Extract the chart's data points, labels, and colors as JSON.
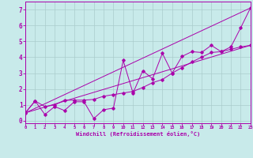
{
  "xlabel": "Windchill (Refroidissement éolien,°C)",
  "ylabel": "",
  "background_color": "#c8eaea",
  "line_color": "#aa00aa",
  "grid_color": "#aacccc",
  "xlim": [
    0,
    23
  ],
  "ylim": [
    -0.15,
    7.5
  ],
  "xticks": [
    0,
    1,
    2,
    3,
    4,
    5,
    6,
    7,
    8,
    9,
    10,
    11,
    12,
    13,
    14,
    15,
    16,
    17,
    18,
    19,
    20,
    21,
    22,
    23
  ],
  "yticks": [
    0,
    1,
    2,
    3,
    4,
    5,
    6,
    7
  ],
  "series1_x": [
    0,
    1,
    2,
    3,
    4,
    5,
    6,
    7,
    8,
    9,
    10,
    11,
    12,
    13,
    14,
    15,
    16,
    17,
    18,
    19,
    20,
    21,
    22,
    23
  ],
  "series1_y": [
    0.5,
    1.25,
    0.4,
    0.9,
    0.65,
    1.2,
    1.2,
    0.15,
    0.7,
    0.8,
    3.8,
    1.75,
    3.15,
    2.65,
    4.25,
    3.0,
    4.05,
    4.35,
    4.3,
    4.75,
    4.35,
    4.65,
    5.85,
    7.1
  ],
  "series2_x": [
    0,
    1,
    2,
    3,
    4,
    5,
    6,
    7,
    8,
    9,
    10,
    11,
    12,
    13,
    14,
    15,
    16,
    17,
    18,
    19,
    20,
    21,
    22,
    23
  ],
  "series2_y": [
    0.5,
    1.25,
    0.9,
    1.0,
    1.3,
    1.3,
    1.3,
    1.35,
    1.55,
    1.65,
    1.75,
    1.85,
    2.1,
    2.4,
    2.6,
    3.0,
    3.35,
    3.7,
    4.0,
    4.3,
    4.35,
    4.5,
    4.65,
    4.75
  ],
  "series3_x": [
    0,
    23
  ],
  "series3_y": [
    0.5,
    7.1
  ],
  "series4_x": [
    0,
    23
  ],
  "series4_y": [
    0.5,
    4.75
  ]
}
